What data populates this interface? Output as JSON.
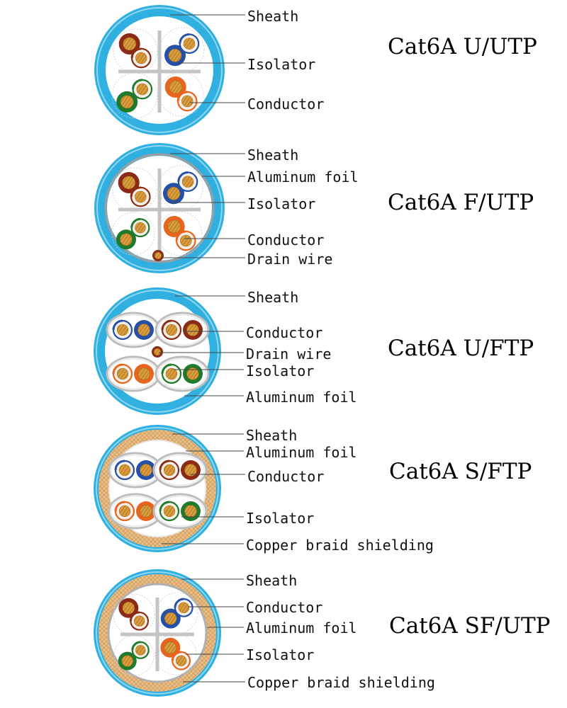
{
  "cables": [
    {
      "title": "Cat6A U/UTP",
      "labels": [
        "Sheath",
        "Isolator",
        "Conductor"
      ]
    },
    {
      "title": "Cat6A F/UTP",
      "labels": [
        "Sheath",
        "Aluminum foil",
        "Isolator",
        "Conductor",
        "Drain wire"
      ]
    },
    {
      "title": "Cat6A U/FTP",
      "labels": [
        "Sheath",
        "Conductor",
        "Drain wire",
        "Isolator",
        "Aluminum foil"
      ]
    },
    {
      "title": "Cat6A S/FTP",
      "labels": [
        "Sheath",
        "Aluminum foil",
        "Conductor",
        "Isolator",
        "Copper braid shielding"
      ]
    },
    {
      "title": "Cat6A SF/UTP",
      "labels": [
        "Sheath",
        "Conductor",
        "Aluminum foil",
        "Isolator",
        "Copper braid shielding"
      ]
    }
  ],
  "colors": {
    "sheath": "#2fb0e0",
    "sheath_light": "#8fd6f1",
    "foil": "#bdbdbd",
    "braid": "#e9c08a",
    "copper": "#c98a2b",
    "brown": "#8a2a17",
    "blue": "#2550a8",
    "orange": "#e8641f",
    "green": "#1f7a2c",
    "separator": "#c4c4c4",
    "leader": "#444444"
  },
  "icons": [
    "cable-cross-section-icon",
    "twisted-pair-icon",
    "drain-wire-icon"
  ]
}
